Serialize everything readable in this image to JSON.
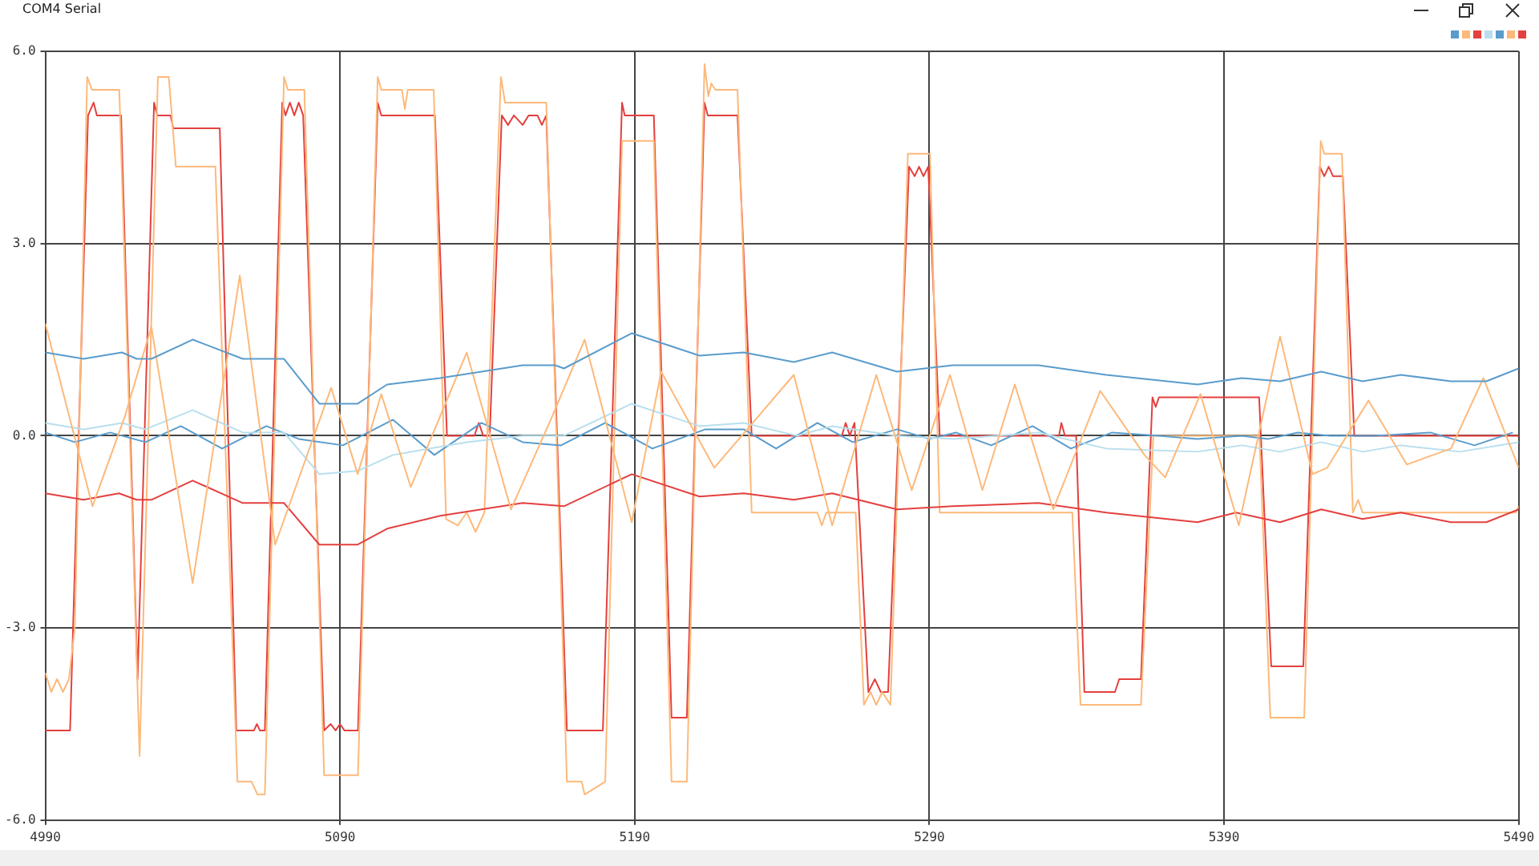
{
  "chart_data": {
    "type": "line",
    "title": "COM4 Serial",
    "marker": "none",
    "grid": true,
    "xlim": [
      4990,
      5490
    ],
    "xticks": [
      4990,
      5090,
      5190,
      5290,
      5390,
      5490
    ],
    "ylim": [
      -6,
      6
    ],
    "yticks": [
      {
        "value": -6,
        "label": "-6.0"
      },
      {
        "value": -3,
        "label": "-3.0"
      },
      {
        "value": 0,
        "label": "0.0"
      },
      {
        "value": 3,
        "label": "3.0"
      },
      {
        "value": 6,
        "label": "6.0"
      }
    ],
    "series": [
      {
        "color": "#5a9ccc",
        "x": [
          4990,
          5003,
          5016,
          5021,
          5026,
          5040,
          5057,
          5071,
          5083,
          5096,
          5106,
          5124,
          5152,
          5163,
          5166,
          5189,
          5212,
          5227,
          5244,
          5257,
          5279,
          5298,
          5327,
          5350,
          5381,
          5396,
          5409,
          5423,
          5437,
          5450,
          5467,
          5479,
          5490
        ],
        "values": [
          1.3,
          1.2,
          1.3,
          1.2,
          1.2,
          1.5,
          1.2,
          1.2,
          0.5,
          0.5,
          0.8,
          0.9,
          1.1,
          1.1,
          1.05,
          1.6,
          1.25,
          1.3,
          1.15,
          1.3,
          1.0,
          1.1,
          1.1,
          0.95,
          0.8,
          0.9,
          0.85,
          1.0,
          0.85,
          0.95,
          0.85,
          0.85,
          1.05
        ]
      },
      {
        "color": "#fdb97a",
        "x": [
          4990,
          5006,
          5017,
          5026,
          5040,
          5056,
          5068,
          5087,
          5096,
          5104,
          5114,
          5133,
          5148,
          5162,
          5173,
          5189,
          5199,
          5217,
          5244,
          5257,
          5272,
          5284,
          5297,
          5308,
          5319,
          5332,
          5348,
          5363,
          5370,
          5382,
          5395,
          5409,
          5420,
          5425,
          5439,
          5452,
          5467,
          5478,
          5490
        ],
        "values": [
          1.75,
          -1.1,
          0.3,
          1.7,
          -2.3,
          2.5,
          -1.7,
          0.75,
          -0.6,
          0.65,
          -0.8,
          1.3,
          -1.15,
          0.3,
          1.5,
          -1.35,
          1.0,
          -0.5,
          0.95,
          -1.4,
          0.95,
          -0.85,
          0.95,
          -0.85,
          0.8,
          -1.15,
          0.7,
          -0.3,
          -0.65,
          0.65,
          -1.4,
          1.55,
          -0.6,
          -0.5,
          0.55,
          -0.45,
          -0.2,
          0.9,
          -0.5
        ]
      },
      {
        "color": "#e3403f",
        "x": [
          4990,
          5003,
          5015,
          5021,
          5026,
          5040,
          5057,
          5071,
          5083,
          5096,
          5106,
          5124,
          5152,
          5166,
          5189,
          5212,
          5227,
          5244,
          5257,
          5279,
          5298,
          5327,
          5350,
          5381,
          5394,
          5409,
          5423,
          5437,
          5450,
          5467,
          5479,
          5490
        ],
        "values": [
          -0.9,
          -1.0,
          -0.9,
          -1.0,
          -1.0,
          -0.7,
          -1.05,
          -1.05,
          -1.7,
          -1.7,
          -1.45,
          -1.25,
          -1.05,
          -1.1,
          -0.6,
          -0.95,
          -0.9,
          -1.0,
          -0.9,
          -1.15,
          -1.1,
          -1.05,
          -1.2,
          -1.35,
          -1.2,
          -1.35,
          -1.15,
          -1.3,
          -1.2,
          -1.35,
          -1.35,
          -1.15
        ]
      },
      {
        "color": "#b9dfee",
        "x": [
          4990,
          5003,
          5016,
          5024,
          5040,
          5057,
          5071,
          5083,
          5096,
          5108,
          5133,
          5152,
          5166,
          5189,
          5212,
          5227,
          5245,
          5257,
          5279,
          5298,
          5327,
          5350,
          5381,
          5396,
          5409,
          5423,
          5437,
          5450,
          5470,
          5490
        ],
        "values": [
          0.2,
          0.1,
          0.2,
          0.1,
          0.4,
          0.05,
          0.05,
          -0.6,
          -0.55,
          -0.3,
          -0.1,
          0.0,
          0.0,
          0.5,
          0.15,
          0.2,
          0.0,
          0.15,
          0.0,
          -0.05,
          0.05,
          -0.2,
          -0.25,
          -0.15,
          -0.25,
          -0.1,
          -0.25,
          -0.15,
          -0.25,
          -0.1
        ]
      },
      {
        "color": "#5a9ccc",
        "x": [
          4990,
          5000,
          5012,
          5024,
          5036,
          5050,
          5065,
          5076,
          5091,
          5108,
          5122,
          5138,
          5152,
          5165,
          5180,
          5196,
          5214,
          5227,
          5238,
          5252,
          5264,
          5279,
          5290,
          5299,
          5311,
          5325,
          5338,
          5352,
          5368,
          5381,
          5396,
          5405,
          5415,
          5426,
          5441,
          5460,
          5475,
          5488
        ],
        "values": [
          0.05,
          -0.1,
          0.05,
          -0.1,
          0.15,
          -0.2,
          0.15,
          -0.05,
          -0.15,
          0.25,
          -0.3,
          0.2,
          -0.1,
          -0.15,
          0.2,
          -0.2,
          0.1,
          0.1,
          -0.2,
          0.2,
          -0.1,
          0.1,
          -0.05,
          0.05,
          -0.15,
          0.15,
          -0.2,
          0.05,
          0.0,
          -0.05,
          0.0,
          -0.05,
          0.05,
          0.0,
          0.0,
          0.05,
          -0.15,
          0.05
        ]
      },
      {
        "color": "#fdb97a",
        "x": [
          4990,
          4992,
          4994,
          4996,
          4998,
          5000,
          5004.2,
          5005.8,
          5015.1,
          5022,
          5028.2,
          5031.9,
          5034.3,
          5047.7,
          5055.2,
          5060,
          5062,
          5064.5,
          5071,
          5072.3,
          5077.9,
          5084.6,
          5096.1,
          5102.8,
          5104,
          5111,
          5112,
          5113,
          5121.8,
          5126,
          5130,
          5133,
          5136,
          5139,
          5144.6,
          5146,
          5160,
          5167,
          5172,
          5173,
          5180,
          5185.7,
          5196.5,
          5202.5,
          5207.7,
          5213.7,
          5215,
          5216,
          5217.4,
          5224.9,
          5229.7,
          5252,
          5253.5,
          5255,
          5265,
          5267.8,
          5270,
          5272,
          5274,
          5276.8,
          5282.7,
          5290.2,
          5293.5,
          5338.5,
          5341.3,
          5361.8,
          5366,
          5402,
          5405.7,
          5417.2,
          5422.8,
          5424,
          5430,
          5433.7,
          5435.5,
          5437,
          5489,
          5490
        ],
        "values": [
          -3.7,
          -4.0,
          -3.8,
          -4.0,
          -3.8,
          -3.0,
          5.6,
          5.4,
          5.4,
          -5.0,
          5.6,
          5.6,
          4.2,
          4.2,
          -5.4,
          -5.4,
          -5.6,
          -5.6,
          5.6,
          5.4,
          5.4,
          -5.3,
          -5.3,
          5.6,
          5.4,
          5.4,
          5.1,
          5.4,
          5.4,
          -1.3,
          -1.4,
          -1.2,
          -1.5,
          -1.2,
          5.6,
          5.2,
          5.2,
          -5.4,
          -5.4,
          -5.6,
          -5.4,
          4.6,
          4.6,
          -5.4,
          -5.4,
          5.8,
          5.3,
          5.5,
          5.4,
          5.4,
          -1.2,
          -1.2,
          -1.4,
          -1.2,
          -1.2,
          -4.2,
          -4.0,
          -4.2,
          -4.0,
          -4.2,
          4.4,
          4.4,
          -1.2,
          -1.2,
          -4.2,
          -4.2,
          0.0,
          0.0,
          -4.4,
          -4.4,
          4.6,
          4.4,
          4.4,
          -1.2,
          -1.0,
          -1.2,
          -1.2,
          -1.1
        ]
      },
      {
        "color": "#e3403f",
        "x": [
          4990,
          4998.4,
          5004.5,
          5006.4,
          5007.5,
          5015.7,
          5021.3,
          5026.9,
          5028,
          5032.5,
          5033.4,
          5049.2,
          5054.8,
          5060.8,
          5061.8,
          5062.8,
          5064.5,
          5070.4,
          5071.5,
          5073,
          5074.5,
          5076,
          5077.5,
          5084.6,
          5086.8,
          5088.5,
          5090,
          5091.5,
          5096.1,
          5102.8,
          5104,
          5122.2,
          5126.3,
          5135.6,
          5137.1,
          5138.6,
          5140.8,
          5144.9,
          5147,
          5149,
          5152,
          5154,
          5157,
          5158.5,
          5160,
          5167,
          5179.2,
          5185.7,
          5186.6,
          5196.5,
          5202.5,
          5207.7,
          5213.7,
          5214.8,
          5224.9,
          5229.7,
          5260.3,
          5261.6,
          5263,
          5264.6,
          5269.3,
          5271.5,
          5273.5,
          5276,
          5283.1,
          5285,
          5286.5,
          5288,
          5289.6,
          5293.5,
          5334,
          5334.8,
          5336,
          5339.8,
          5342.6,
          5353,
          5354.4,
          5361.8,
          5365.7,
          5366.8,
          5367.9,
          5401.9,
          5406,
          5416.9,
          5422.5,
          5424,
          5425.5,
          5427,
          5430.3,
          5434.2,
          5490
        ],
        "values": [
          -4.6,
          -4.6,
          5.0,
          5.2,
          5.0,
          5.0,
          -3.8,
          5.2,
          5.0,
          5.0,
          4.8,
          4.8,
          -4.6,
          -4.6,
          -4.5,
          -4.6,
          -4.6,
          5.2,
          5.0,
          5.2,
          5.0,
          5.2,
          5.0,
          -4.6,
          -4.5,
          -4.6,
          -4.5,
          -4.6,
          -4.6,
          5.2,
          5.0,
          5.0,
          0.0,
          0.0,
          0.2,
          0.0,
          0.0,
          5.0,
          4.85,
          5.0,
          4.85,
          5.0,
          5.0,
          4.85,
          5.0,
          -4.6,
          -4.6,
          5.2,
          5.0,
          5.0,
          -4.4,
          -4.4,
          5.2,
          5.0,
          5.0,
          0.0,
          0.0,
          0.2,
          0.0,
          0.2,
          -4.0,
          -3.8,
          -4.0,
          -4.0,
          4.2,
          4.05,
          4.2,
          4.05,
          4.2,
          0.0,
          0.0,
          0.2,
          0.0,
          0.0,
          -4.0,
          -4.0,
          -3.8,
          -3.8,
          0.6,
          0.45,
          0.6,
          0.6,
          -3.6,
          -3.6,
          4.2,
          4.05,
          4.2,
          4.05,
          4.05,
          0.0,
          0.0
        ]
      }
    ]
  }
}
